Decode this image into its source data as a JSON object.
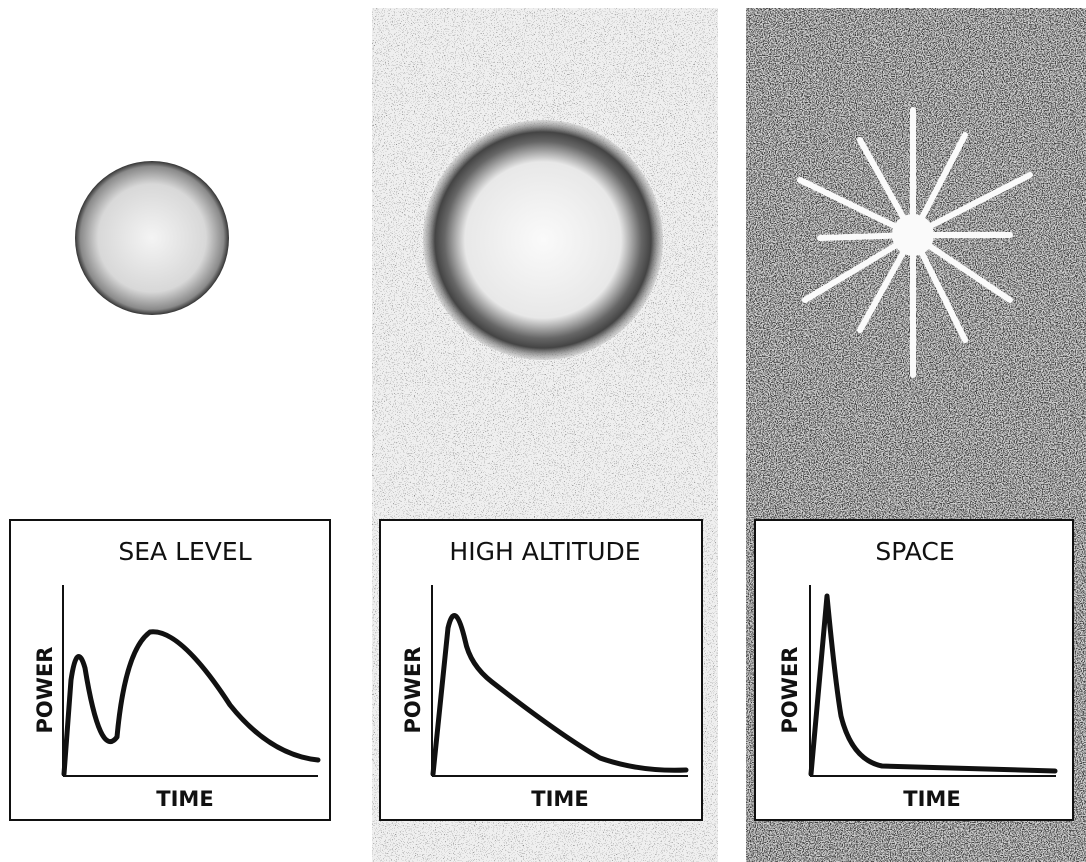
{
  "panels": [
    {
      "title": "SEA LEVEL",
      "y_label": "POWER",
      "x_label": "TIME"
    },
    {
      "title": "HIGH ALTITUDE",
      "y_label": "POWER",
      "x_label": "TIME"
    },
    {
      "title": "SPACE",
      "y_label": "POWER",
      "x_label": "TIME"
    }
  ]
}
